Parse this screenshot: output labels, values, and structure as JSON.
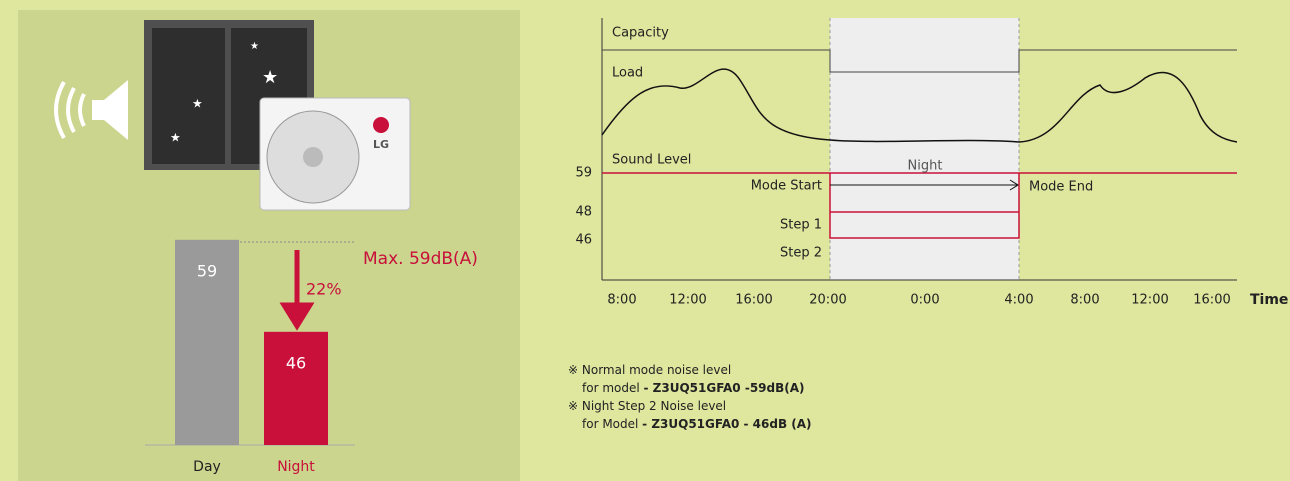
{
  "chart_data": {
    "type": "bar",
    "categories": [
      "Day",
      "Night"
    ],
    "values": [
      59,
      46
    ],
    "colors": [
      "#9a9a9a",
      "#c8103a"
    ],
    "ylim": [
      30,
      70
    ],
    "annotation": "Max. 59dB(A)",
    "reduction_label": "22%"
  },
  "diagram": {
    "capacity_label": "Capacity",
    "load_label": "Load",
    "sound_label": "Sound Level",
    "night_label": "Night",
    "levels": [
      {
        "value": "59",
        "text": "Mode Start"
      },
      {
        "value": "48",
        "text": "Step 1"
      },
      {
        "value": "46",
        "text": "Step 2"
      }
    ],
    "mode_end": "Mode End",
    "times": [
      "8:00",
      "12:00",
      "16:00",
      "20:00",
      "0:00",
      "4:00",
      "8:00",
      "12:00",
      "16:00"
    ],
    "x_title": "Time"
  },
  "notes": [
    {
      "plain": "※ Normal mode noise level"
    },
    {
      "plain": "for model ",
      "bold": "- Z3UQ51GFA0 -59dB(A)"
    },
    {
      "plain": "※ Night Step 2 Noise level"
    },
    {
      "plain": "for Model ",
      "bold": "- Z3UQ51GFA0 - 46dB (A)"
    }
  ]
}
